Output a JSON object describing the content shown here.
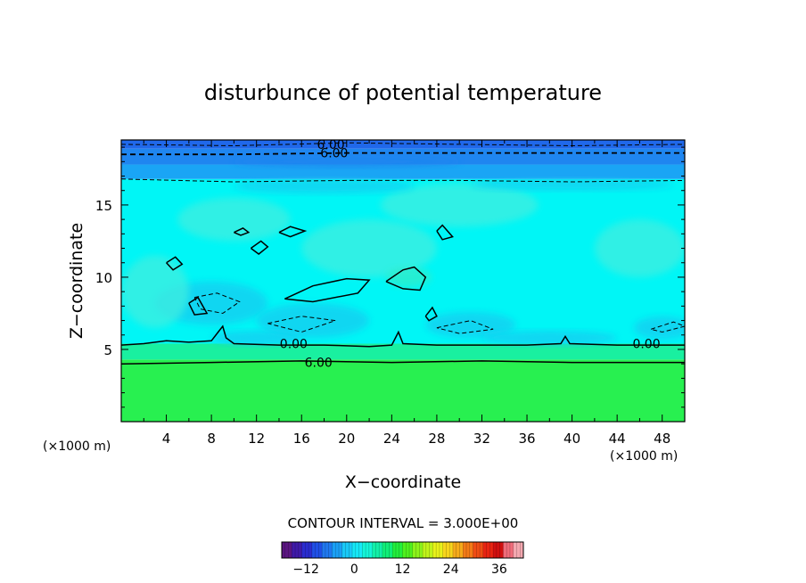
{
  "chart_data": {
    "type": "heatmap",
    "title": "disturbunce of potential temperature",
    "xlabel": "X−coordinate",
    "ylabel": "Z−coordinate",
    "x_unit_left": "(×1000 m)",
    "x_unit_right": "(×1000 m)",
    "xlim": [
      0,
      50
    ],
    "ylim": [
      0,
      19.5
    ],
    "x_ticks": [
      4,
      8,
      12,
      16,
      20,
      24,
      28,
      32,
      36,
      40,
      44,
      48
    ],
    "x_tick_labels": [
      "4",
      "8",
      "12",
      "16",
      "20",
      "24",
      "28",
      "32",
      "36",
      "40",
      "44",
      "48"
    ],
    "y_ticks": [
      5,
      10,
      15
    ],
    "y_tick_labels": [
      "5",
      "10",
      "15"
    ],
    "contour_interval_text": "CONTOUR INTERVAL = 3.000E+00",
    "contour_labels": [
      {
        "text": "6.00",
        "x": 18.6,
        "z": 19.2
      },
      {
        "text": "6.00",
        "x": 18.9,
        "z": 18.6
      },
      {
        "text": "0.00",
        "x": 15.3,
        "z": 5.4
      },
      {
        "text": "0.00",
        "x": 46.6,
        "z": 5.4
      },
      {
        "text": "6.00",
        "x": 17.5,
        "z": 4.1
      }
    ],
    "contour_lines": [
      {
        "style": "solid",
        "points": [
          [
            0,
            5.3
          ],
          [
            2,
            5.4
          ],
          [
            4,
            5.6
          ],
          [
            6,
            5.5
          ],
          [
            8,
            5.6
          ],
          [
            8.6,
            6.2
          ],
          [
            9,
            6.6
          ],
          [
            9.3,
            5.8
          ],
          [
            10,
            5.4
          ],
          [
            14,
            5.3
          ],
          [
            18,
            5.3
          ],
          [
            22,
            5.2
          ],
          [
            24,
            5.3
          ],
          [
            24.6,
            6.2
          ],
          [
            25,
            5.4
          ],
          [
            28,
            5.3
          ],
          [
            32,
            5.3
          ],
          [
            36,
            5.3
          ],
          [
            39,
            5.4
          ],
          [
            39.4,
            5.9
          ],
          [
            39.8,
            5.4
          ],
          [
            44,
            5.3
          ],
          [
            48,
            5.3
          ],
          [
            50,
            5.3
          ]
        ]
      },
      {
        "style": "solid",
        "points": [
          [
            0,
            4.0
          ],
          [
            8,
            4.1
          ],
          [
            16,
            4.2
          ],
          [
            24,
            4.1
          ],
          [
            32,
            4.2
          ],
          [
            40,
            4.1
          ],
          [
            50,
            4.1
          ]
        ]
      },
      {
        "style": "dashed_thick",
        "points": [
          [
            0,
            18.5
          ],
          [
            10,
            18.5
          ],
          [
            20,
            18.6
          ],
          [
            30,
            18.6
          ],
          [
            40,
            18.6
          ],
          [
            50,
            18.6
          ]
        ]
      },
      {
        "style": "dashed",
        "points": [
          [
            0,
            19.2
          ],
          [
            10,
            19.1
          ],
          [
            20,
            19.3
          ],
          [
            30,
            19.2
          ],
          [
            40,
            19.1
          ],
          [
            50,
            19.2
          ]
        ]
      },
      {
        "style": "dashed",
        "points": [
          [
            0,
            16.8
          ],
          [
            5,
            16.7
          ],
          [
            10,
            16.6
          ],
          [
            20,
            16.7
          ],
          [
            30,
            16.7
          ],
          [
            40,
            16.6
          ],
          [
            50,
            16.7
          ]
        ]
      },
      {
        "style": "solid",
        "points": [
          [
            14.5,
            8.5
          ],
          [
            17,
            9.4
          ],
          [
            20,
            9.9
          ],
          [
            22,
            9.8
          ],
          [
            21,
            8.9
          ],
          [
            17,
            8.3
          ],
          [
            14.5,
            8.5
          ]
        ]
      },
      {
        "style": "solid",
        "points": [
          [
            23.5,
            9.7
          ],
          [
            25,
            10.5
          ],
          [
            26,
            10.7
          ],
          [
            27,
            10.0
          ],
          [
            26.5,
            9.1
          ],
          [
            25,
            9.2
          ],
          [
            23.5,
            9.7
          ]
        ]
      },
      {
        "style": "solid",
        "points": [
          [
            11.5,
            12.0
          ],
          [
            12.4,
            12.5
          ],
          [
            13,
            12.1
          ],
          [
            12.2,
            11.6
          ],
          [
            11.5,
            12.0
          ]
        ]
      },
      {
        "style": "solid",
        "points": [
          [
            14,
            13.1
          ],
          [
            15,
            13.5
          ],
          [
            16.3,
            13.2
          ],
          [
            15,
            12.8
          ],
          [
            14,
            13.1
          ]
        ]
      },
      {
        "style": "solid",
        "points": [
          [
            10,
            13.1
          ],
          [
            10.8,
            13.4
          ],
          [
            11.3,
            13.1
          ],
          [
            10.6,
            12.9
          ],
          [
            10,
            13.1
          ]
        ]
      },
      {
        "style": "solid",
        "points": [
          [
            4,
            11.0
          ],
          [
            4.8,
            11.4
          ],
          [
            5.4,
            10.9
          ],
          [
            4.6,
            10.5
          ],
          [
            4,
            11.0
          ]
        ]
      },
      {
        "style": "solid",
        "points": [
          [
            6.0,
            8.2
          ],
          [
            6.8,
            8.6
          ],
          [
            7.6,
            7.5
          ],
          [
            6.5,
            7.4
          ],
          [
            6.0,
            8.2
          ]
        ]
      },
      {
        "style": "solid",
        "points": [
          [
            28.0,
            13.2
          ],
          [
            28.5,
            13.6
          ],
          [
            29.4,
            12.8
          ],
          [
            28.5,
            12.6
          ],
          [
            28.0,
            13.2
          ]
        ]
      },
      {
        "style": "solid",
        "points": [
          [
            27,
            7.3
          ],
          [
            27.6,
            7.9
          ],
          [
            28,
            7.3
          ],
          [
            27.3,
            7.0
          ],
          [
            27,
            7.3
          ]
        ]
      },
      {
        "style": "dashed",
        "points": [
          [
            6.5,
            8.6
          ],
          [
            8.5,
            8.9
          ],
          [
            10.5,
            8.3
          ],
          [
            9,
            7.5
          ],
          [
            7,
            7.8
          ],
          [
            6.5,
            8.6
          ]
        ]
      },
      {
        "style": "dashed",
        "points": [
          [
            13,
            6.8
          ],
          [
            16,
            7.3
          ],
          [
            19,
            7.0
          ],
          [
            16,
            6.2
          ],
          [
            13,
            6.8
          ]
        ]
      },
      {
        "style": "dashed",
        "points": [
          [
            28,
            6.5
          ],
          [
            31,
            7.0
          ],
          [
            33,
            6.4
          ],
          [
            30,
            6.1
          ],
          [
            28,
            6.5
          ]
        ]
      },
      {
        "style": "dashed",
        "points": [
          [
            47,
            6.4
          ],
          [
            49,
            6.9
          ],
          [
            50,
            6.6
          ],
          [
            48,
            6.2
          ],
          [
            47,
            6.4
          ]
        ]
      }
    ],
    "colorbar": {
      "min": -18,
      "max": 42,
      "ticks": [
        -12,
        0,
        12,
        24,
        36
      ],
      "tick_labels": [
        "−12",
        "0",
        "12",
        "24",
        "36"
      ],
      "colors": [
        "#5a1580",
        "#3f1aa8",
        "#2a2ccf",
        "#1f4fe6",
        "#1f78ef",
        "#1aa0f5",
        "#19c9f7",
        "#16e8f7",
        "#14f5d8",
        "#12f0a8",
        "#10ee78",
        "#22ee3c",
        "#4ff01e",
        "#8cf21a",
        "#c0f41a",
        "#e8f21a",
        "#f7d51c",
        "#f5aa1a",
        "#f37a17",
        "#ef4c14",
        "#e82412",
        "#d01010",
        "#f06c7a",
        "#f4a8b0"
      ]
    },
    "field_colors": {
      "lower_layer": "#28f050",
      "lower_transition": "#19f0a0",
      "mid_cyan": "#00f6f6",
      "mid_light": "#40eee0",
      "patch_cyan_blue": "#19ccf0",
      "upper_1": "#1aa5f5",
      "upper_2": "#1f86f0",
      "upper_3": "#2068ea",
      "patch_greenish": "#33ecc8"
    }
  }
}
